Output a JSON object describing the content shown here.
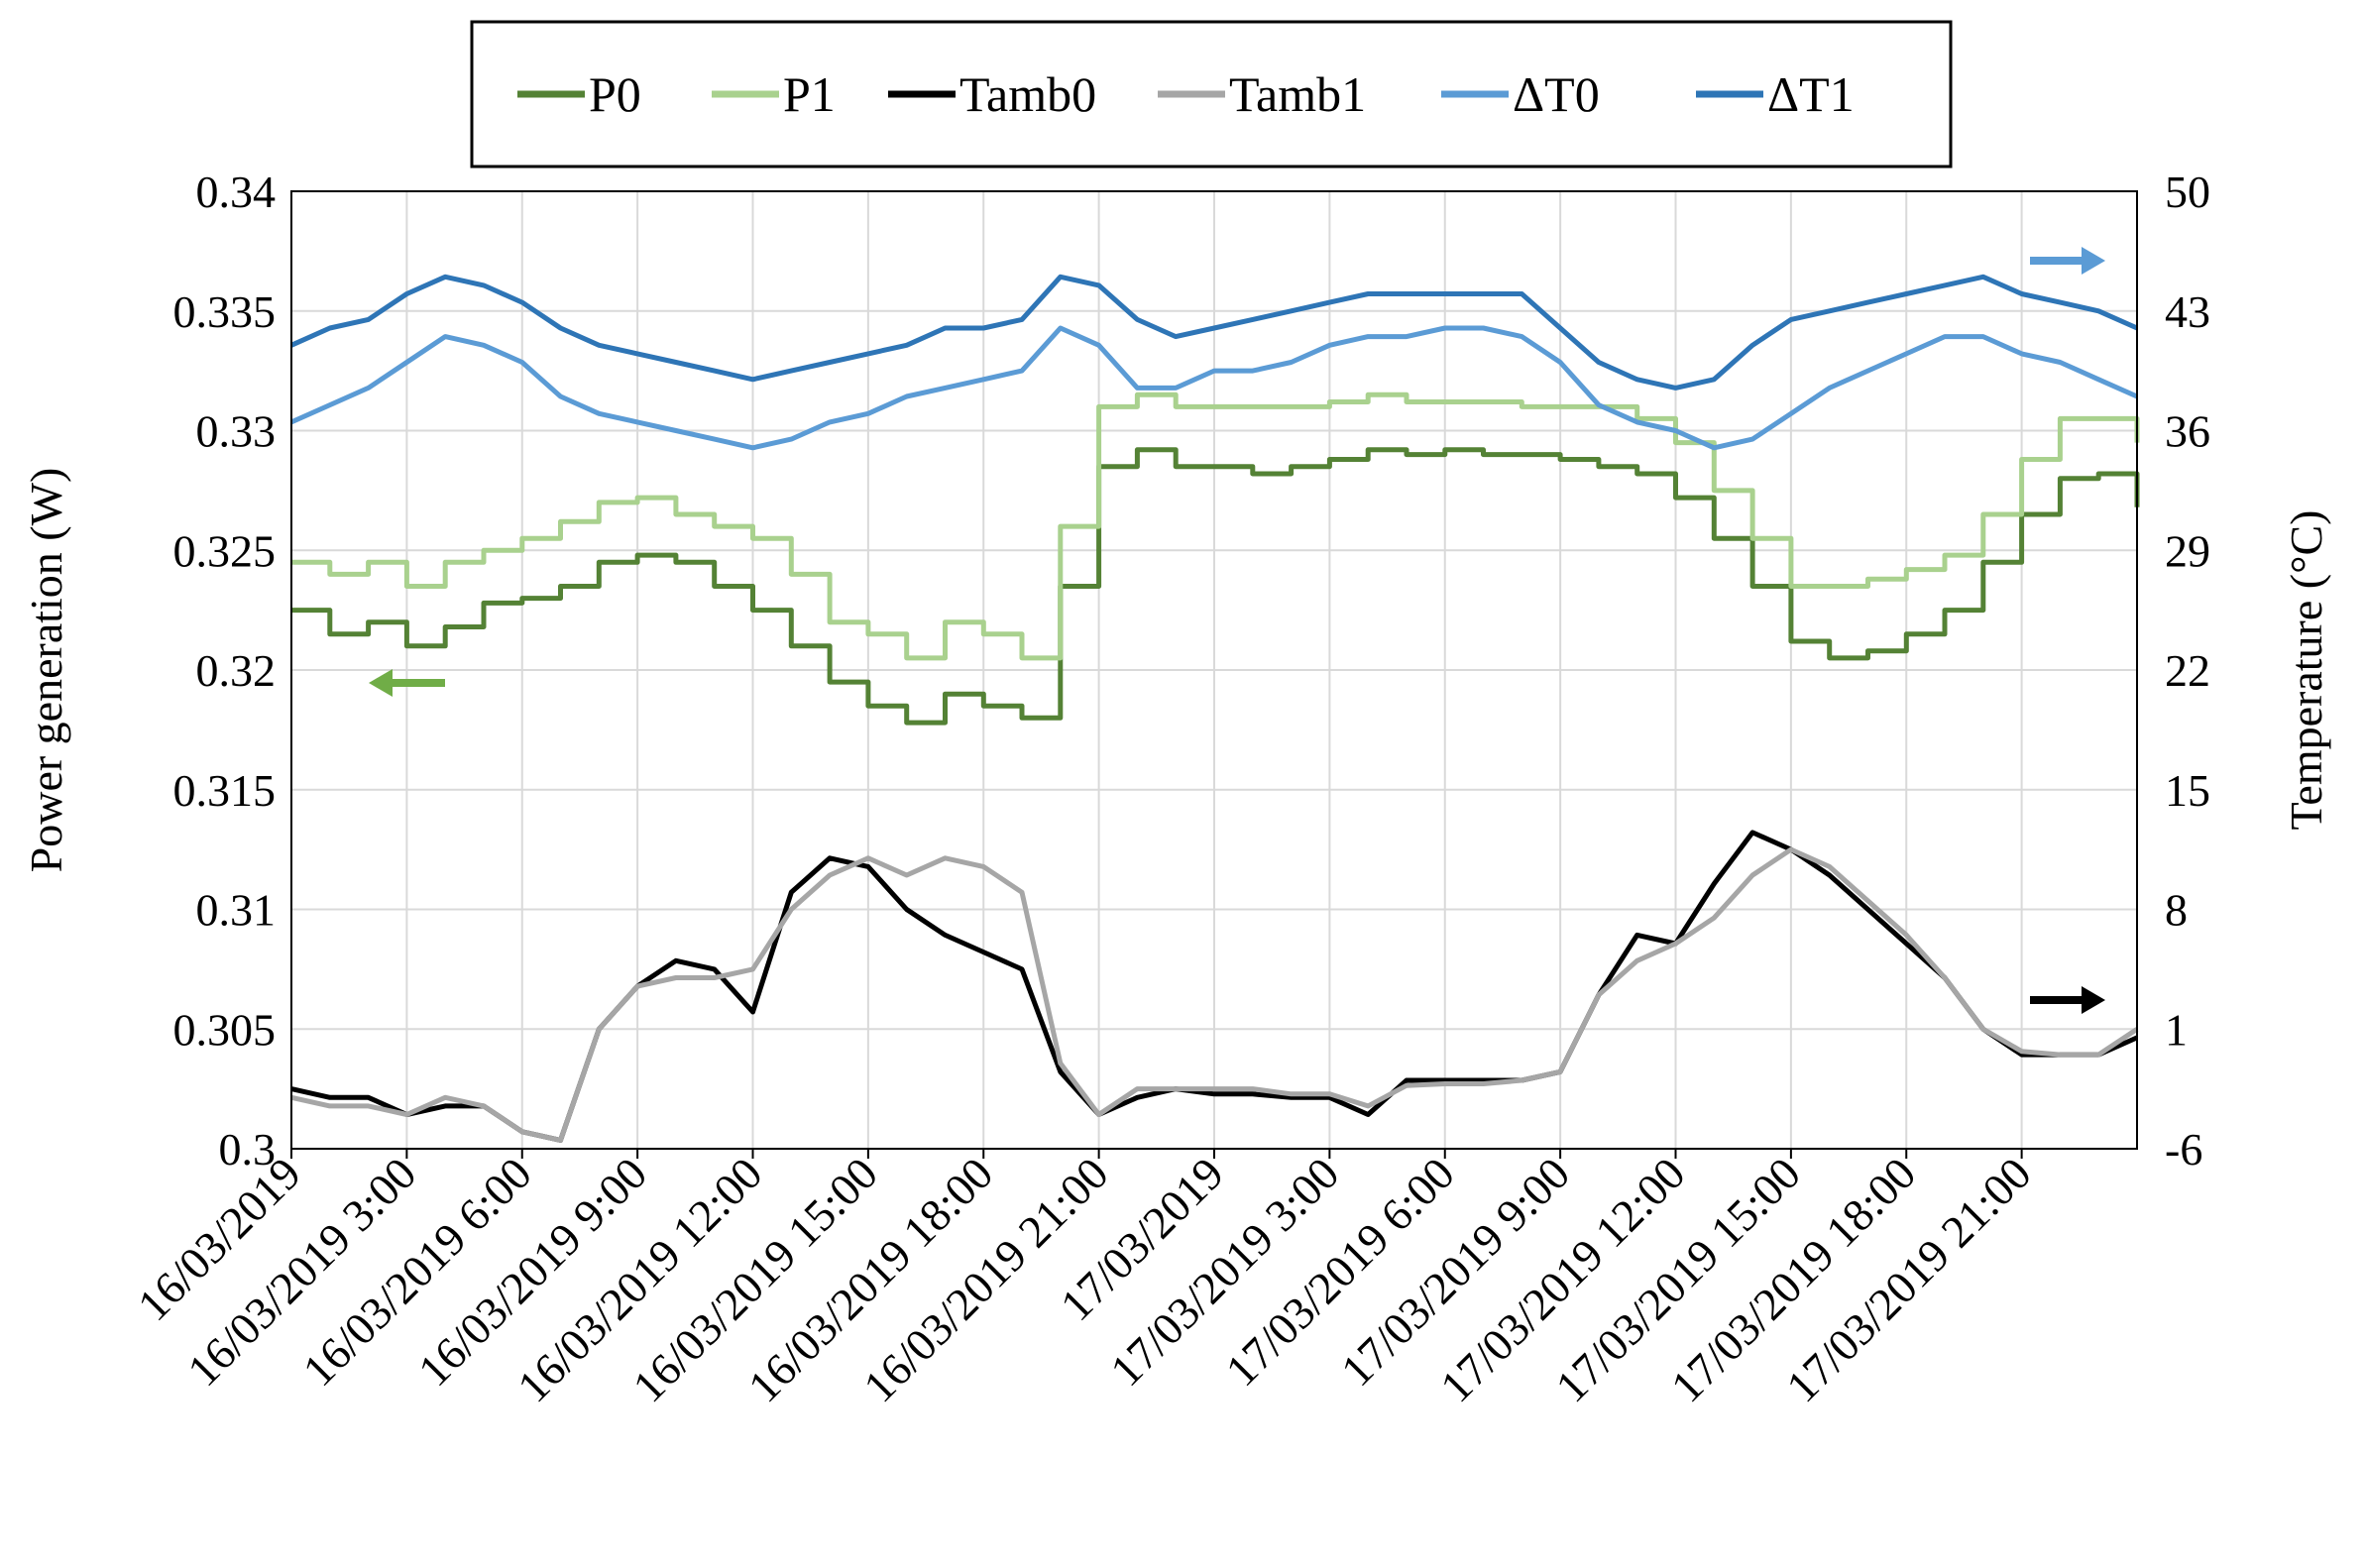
{
  "chart_data": {
    "type": "line",
    "title": "",
    "xlabel": "",
    "ylabel": "Power generation (W)",
    "y2label": "Temperature (°C)",
    "ylim": [
      0.3,
      0.34
    ],
    "y2lim": [
      -6,
      50
    ],
    "y_ticks": [
      "0.3",
      "0.305",
      "0.31",
      "0.315",
      "0.32",
      "0.325",
      "0.33",
      "0.335",
      "0.34"
    ],
    "y2_ticks": [
      "-6",
      "1",
      "8",
      "15",
      "22",
      "29",
      "36",
      "43",
      "50"
    ],
    "x_ticks": [
      "16/03/2019",
      "16/03/2019 3:00",
      "16/03/2019 6:00",
      "16/03/2019 9:00",
      "16/03/2019 12:00",
      "16/03/2019 15:00",
      "16/03/2019 18:00",
      "16/03/2019 21:00",
      "17/03/2019",
      "17/03/2019 3:00",
      "17/03/2019 6:00",
      "17/03/2019 9:00",
      "17/03/2019 12:00",
      "17/03/2019 15:00",
      "17/03/2019 18:00",
      "17/03/2019 21:00"
    ],
    "x_unit": "hours since 16/03/2019 0:00",
    "xlim": [
      0,
      48
    ],
    "grid": true,
    "legend_position": "top",
    "series": [
      {
        "name": "P0",
        "axis": "left",
        "color": "#548235",
        "step": true,
        "x": [
          0,
          1,
          2,
          3,
          4,
          5,
          6,
          7,
          8,
          9,
          10,
          11,
          12,
          13,
          14,
          15,
          16,
          17,
          18,
          19,
          20,
          21,
          22,
          23,
          24,
          25,
          26,
          27,
          28,
          29,
          30,
          31,
          32,
          33,
          34,
          35,
          36,
          37,
          38,
          39,
          40,
          41,
          42,
          43,
          44,
          45,
          46,
          47,
          48
        ],
        "y": [
          0.3225,
          0.3215,
          0.322,
          0.321,
          0.3218,
          0.3228,
          0.323,
          0.3235,
          0.3245,
          0.3248,
          0.3245,
          0.3235,
          0.3225,
          0.321,
          0.3195,
          0.3185,
          0.3178,
          0.319,
          0.3185,
          0.318,
          0.3235,
          0.3285,
          0.3292,
          0.3285,
          0.3285,
          0.3282,
          0.3285,
          0.3288,
          0.3292,
          0.329,
          0.3292,
          0.329,
          0.329,
          0.3288,
          0.3285,
          0.3282,
          0.3272,
          0.3255,
          0.3235,
          0.3212,
          0.3205,
          0.3208,
          0.3215,
          0.3225,
          0.3245,
          0.3265,
          0.328,
          0.3282,
          0.3268
        ]
      },
      {
        "name": "P1",
        "axis": "left",
        "color": "#a9d18e",
        "step": true,
        "x": [
          0,
          1,
          2,
          3,
          4,
          5,
          6,
          7,
          8,
          9,
          10,
          11,
          12,
          13,
          14,
          15,
          16,
          17,
          18,
          19,
          20,
          21,
          22,
          23,
          24,
          25,
          26,
          27,
          28,
          29,
          30,
          31,
          32,
          33,
          34,
          35,
          36,
          37,
          38,
          39,
          40,
          41,
          42,
          43,
          44,
          45,
          46,
          47,
          48
        ],
        "y": [
          0.3245,
          0.324,
          0.3245,
          0.3235,
          0.3245,
          0.325,
          0.3255,
          0.3262,
          0.327,
          0.3272,
          0.3265,
          0.326,
          0.3255,
          0.324,
          0.322,
          0.3215,
          0.3205,
          0.322,
          0.3215,
          0.3205,
          0.326,
          0.331,
          0.3315,
          0.331,
          0.331,
          0.331,
          0.331,
          0.3312,
          0.3315,
          0.3312,
          0.3312,
          0.3312,
          0.331,
          0.331,
          0.331,
          0.3305,
          0.3295,
          0.3275,
          0.3255,
          0.3235,
          0.3235,
          0.3238,
          0.3242,
          0.3248,
          0.3265,
          0.3288,
          0.3305,
          0.3305,
          0.3295
        ]
      },
      {
        "name": "Tamb0",
        "axis": "right",
        "color": "#000000",
        "step": false,
        "x": [
          0,
          1,
          2,
          3,
          4,
          5,
          6,
          7,
          8,
          9,
          10,
          11,
          12,
          13,
          14,
          15,
          16,
          17,
          18,
          19,
          20,
          21,
          22,
          23,
          24,
          25,
          26,
          27,
          28,
          29,
          30,
          31,
          32,
          33,
          34,
          35,
          36,
          37,
          38,
          39,
          40,
          41,
          42,
          43,
          44,
          45,
          46,
          47,
          48
        ],
        "y": [
          -2.5,
          -3,
          -3,
          -4,
          -3.5,
          -3.5,
          -5,
          -5.5,
          1,
          3.5,
          5,
          4.5,
          2,
          9,
          11,
          10.5,
          8,
          6.5,
          5.5,
          4.5,
          -1.5,
          -4,
          -3,
          -2.5,
          -2.8,
          -2.8,
          -3,
          -3,
          -4,
          -2,
          -2,
          -2,
          -2,
          -1.5,
          3,
          6.5,
          6,
          9.5,
          12.5,
          11.5,
          10,
          8,
          6,
          4,
          1,
          -0.5,
          -0.5,
          -0.5,
          0.5
        ]
      },
      {
        "name": "Tamb1",
        "axis": "right",
        "color": "#a6a6a6",
        "step": false,
        "x": [
          0,
          1,
          2,
          3,
          4,
          5,
          6,
          7,
          8,
          9,
          10,
          11,
          12,
          13,
          14,
          15,
          16,
          17,
          18,
          19,
          20,
          21,
          22,
          23,
          24,
          25,
          26,
          27,
          28,
          29,
          30,
          31,
          32,
          33,
          34,
          35,
          36,
          37,
          38,
          39,
          40,
          41,
          42,
          43,
          44,
          45,
          46,
          47,
          48
        ],
        "y": [
          -3,
          -3.5,
          -3.5,
          -4,
          -3,
          -3.5,
          -5,
          -5.5,
          1,
          3.5,
          4,
          4,
          4.5,
          8,
          10,
          11,
          10,
          11,
          10.5,
          9,
          -1,
          -4,
          -2.5,
          -2.5,
          -2.5,
          -2.5,
          -2.8,
          -2.8,
          -3.5,
          -2.3,
          -2.2,
          -2.2,
          -2,
          -1.5,
          3,
          5,
          6,
          7.5,
          10,
          11.5,
          10.5,
          8.5,
          6.5,
          4,
          1,
          -0.3,
          -0.5,
          -0.5,
          1
        ]
      },
      {
        "name": "ΔT0",
        "axis": "right",
        "color": "#5b9bd5",
        "step": false,
        "x": [
          0,
          1,
          2,
          3,
          4,
          5,
          6,
          7,
          8,
          9,
          10,
          11,
          12,
          13,
          14,
          15,
          16,
          17,
          18,
          19,
          20,
          21,
          22,
          23,
          24,
          25,
          26,
          27,
          28,
          29,
          30,
          31,
          32,
          33,
          34,
          35,
          36,
          37,
          38,
          39,
          40,
          41,
          42,
          43,
          44,
          45,
          46,
          47,
          48
        ],
        "y": [
          36.5,
          37.5,
          38.5,
          40,
          41.5,
          41,
          40,
          38,
          37,
          36.5,
          36,
          35.5,
          35,
          35.5,
          36.5,
          37,
          38,
          38.5,
          39,
          39.5,
          42,
          41,
          38.5,
          38.5,
          39.5,
          39.5,
          40,
          41,
          41.5,
          41.5,
          42,
          42,
          41.5,
          40,
          37.5,
          36.5,
          36,
          35,
          35.5,
          37,
          38.5,
          39.5,
          40.5,
          41.5,
          41.5,
          40.5,
          40,
          39,
          38
        ]
      },
      {
        "name": "ΔT1",
        "axis": "right",
        "color": "#2e75b6",
        "step": false,
        "x": [
          0,
          1,
          2,
          3,
          4,
          5,
          6,
          7,
          8,
          9,
          10,
          11,
          12,
          13,
          14,
          15,
          16,
          17,
          18,
          19,
          20,
          21,
          22,
          23,
          24,
          25,
          26,
          27,
          28,
          29,
          30,
          31,
          32,
          33,
          34,
          35,
          36,
          37,
          38,
          39,
          40,
          41,
          42,
          43,
          44,
          45,
          46,
          47,
          48
        ],
        "y": [
          41,
          42,
          42.5,
          44,
          45,
          44.5,
          43.5,
          42,
          41,
          40.5,
          40,
          39.5,
          39,
          39.5,
          40,
          40.5,
          41,
          42,
          42,
          42.5,
          45,
          44.5,
          42.5,
          41.5,
          42,
          42.5,
          43,
          43.5,
          44,
          44,
          44,
          44,
          44,
          42,
          40,
          39,
          38.5,
          39,
          41,
          42.5,
          43,
          43.5,
          44,
          44.5,
          45,
          44,
          43.5,
          43,
          42
        ]
      }
    ],
    "annotations": [
      {
        "type": "arrow",
        "direction": "left",
        "color": "#70ad47",
        "points_to": "left axis"
      },
      {
        "type": "arrow",
        "direction": "right",
        "color": "#5b9bd5",
        "points_to": "right axis"
      },
      {
        "type": "arrow",
        "direction": "right",
        "color": "#000000",
        "points_to": "right axis"
      }
    ]
  }
}
